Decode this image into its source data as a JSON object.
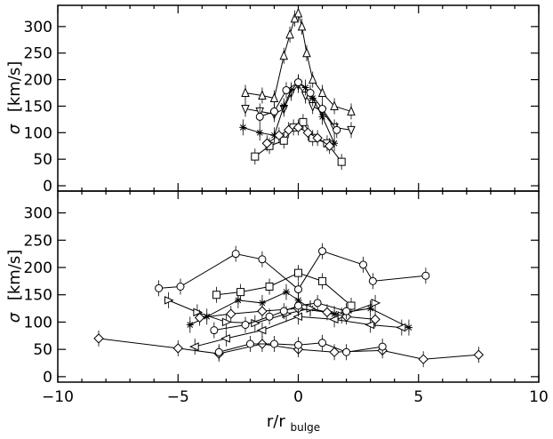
{
  "chart_data": [
    {
      "type": "line",
      "panel": "top",
      "ylabel_symbol": "σ",
      "ylabel_unit": "[km/s]",
      "xlim": [
        -10,
        10
      ],
      "ylim": [
        -10,
        340
      ],
      "yticks": [
        0,
        50,
        100,
        150,
        200,
        250,
        300
      ],
      "ytick_labels": [
        "0",
        "50",
        "100",
        "150",
        "200",
        "250",
        "300"
      ],
      "series": [
        {
          "marker": "triangle-up",
          "x": [
            -2.2,
            -1.5,
            -1.0,
            -0.6,
            -0.35,
            -0.15,
            0.0,
            0.15,
            0.35,
            0.6,
            1.0,
            1.5,
            2.2
          ],
          "y": [
            175,
            170,
            165,
            245,
            285,
            315,
            325,
            300,
            250,
            200,
            175,
            150,
            140
          ]
        },
        {
          "marker": "triangle-down",
          "x": [
            -2.2,
            -1.6,
            -1.0,
            -0.6,
            -0.3,
            0.0,
            0.3,
            0.6,
            1.0,
            1.5,
            2.2
          ],
          "y": [
            145,
            140,
            135,
            145,
            175,
            190,
            170,
            150,
            140,
            110,
            105
          ]
        },
        {
          "marker": "asterisk",
          "x": [
            -2.3,
            -1.6,
            -1.0,
            -0.6,
            -0.3,
            0.0,
            0.3,
            0.6,
            1.0,
            1.5
          ],
          "y": [
            110,
            100,
            95,
            150,
            180,
            195,
            185,
            165,
            130,
            80
          ]
        },
        {
          "marker": "circle",
          "x": [
            -1.6,
            -1.0,
            -0.5,
            0.0,
            0.5,
            1.0,
            1.6
          ],
          "y": [
            130,
            140,
            180,
            195,
            175,
            145,
            105
          ]
        },
        {
          "marker": "square",
          "x": [
            -1.8,
            -1.2,
            -0.6,
            -0.2,
            0.2,
            0.6,
            1.2,
            1.8
          ],
          "y": [
            55,
            75,
            85,
            110,
            120,
            90,
            80,
            45
          ]
        },
        {
          "marker": "diamond",
          "x": [
            -1.3,
            -0.8,
            -0.4,
            0.0,
            0.4,
            0.8,
            1.3
          ],
          "y": [
            80,
            95,
            105,
            110,
            100,
            90,
            75
          ]
        }
      ]
    },
    {
      "type": "line",
      "panel": "bottom",
      "ylabel_symbol": "σ",
      "ylabel_unit": "[km/s]",
      "xlabel_main": "r/r",
      "xlabel_sub": "bulge",
      "xlim": [
        -10,
        10
      ],
      "ylim": [
        -10,
        340
      ],
      "xticks": [
        -10,
        -5,
        0,
        5,
        10
      ],
      "xtick_labels": [
        "−10",
        "−5",
        "0",
        "5",
        "10"
      ],
      "yticks": [
        0,
        50,
        100,
        150,
        200,
        250,
        300
      ],
      "ytick_labels": [
        "0",
        "50",
        "100",
        "150",
        "200",
        "250",
        "300"
      ],
      "series": [
        {
          "marker": "circle",
          "x": [
            -5.8,
            -4.9,
            -2.6,
            -1.5,
            0.0,
            1.0,
            2.7,
            3.1,
            5.3
          ],
          "y": [
            162,
            165,
            225,
            215,
            160,
            230,
            205,
            175,
            185
          ]
        },
        {
          "marker": "diamond",
          "x": [
            -8.3,
            -5.0,
            -3.3,
            -1.5,
            0.0,
            1.5,
            3.5,
            5.2,
            7.5
          ],
          "y": [
            70,
            52,
            42,
            60,
            50,
            45,
            48,
            32,
            40
          ]
        },
        {
          "marker": "circle",
          "x": [
            -3.3,
            -2.0,
            -1.0,
            0.0,
            1.0,
            2.0,
            3.5
          ],
          "y": [
            45,
            60,
            60,
            58,
            62,
            45,
            55
          ]
        },
        {
          "marker": "asterisk",
          "x": [
            -4.5,
            -3.8,
            -2.5,
            -1.5,
            -0.5,
            0.0,
            0.5,
            1.5,
            3.0,
            4.6
          ],
          "y": [
            95,
            110,
            140,
            135,
            155,
            140,
            125,
            115,
            125,
            90
          ]
        },
        {
          "marker": "square",
          "x": [
            -3.4,
            -2.4,
            -1.2,
            0.0,
            1.0,
            2.2
          ],
          "y": [
            150,
            155,
            165,
            190,
            175,
            130
          ]
        },
        {
          "marker": "triangle-right",
          "x": [
            -5.4,
            -4.2,
            -3.0,
            -1.8,
            -0.5,
            0.5,
            1.8,
            3.2
          ],
          "y": [
            140,
            118,
            100,
            98,
            115,
            125,
            112,
            135
          ]
        },
        {
          "marker": "triangle-left",
          "x": [
            -4.3,
            -3.0,
            -1.5,
            0.0,
            1.5,
            3.0,
            4.3
          ],
          "y": [
            55,
            70,
            85,
            110,
            105,
            95,
            90
          ]
        },
        {
          "marker": "diamond",
          "x": [
            -4.1,
            -2.8,
            -1.5,
            0.0,
            1.2,
            2.0,
            3.2
          ],
          "y": [
            108,
            115,
            120,
            125,
            118,
            110,
            105
          ]
        },
        {
          "marker": "circle",
          "x": [
            -3.5,
            -2.2,
            -1.2,
            -0.6,
            0.0,
            0.8,
            2.0
          ],
          "y": [
            85,
            95,
            110,
            120,
            130,
            135,
            120
          ]
        }
      ]
    }
  ]
}
